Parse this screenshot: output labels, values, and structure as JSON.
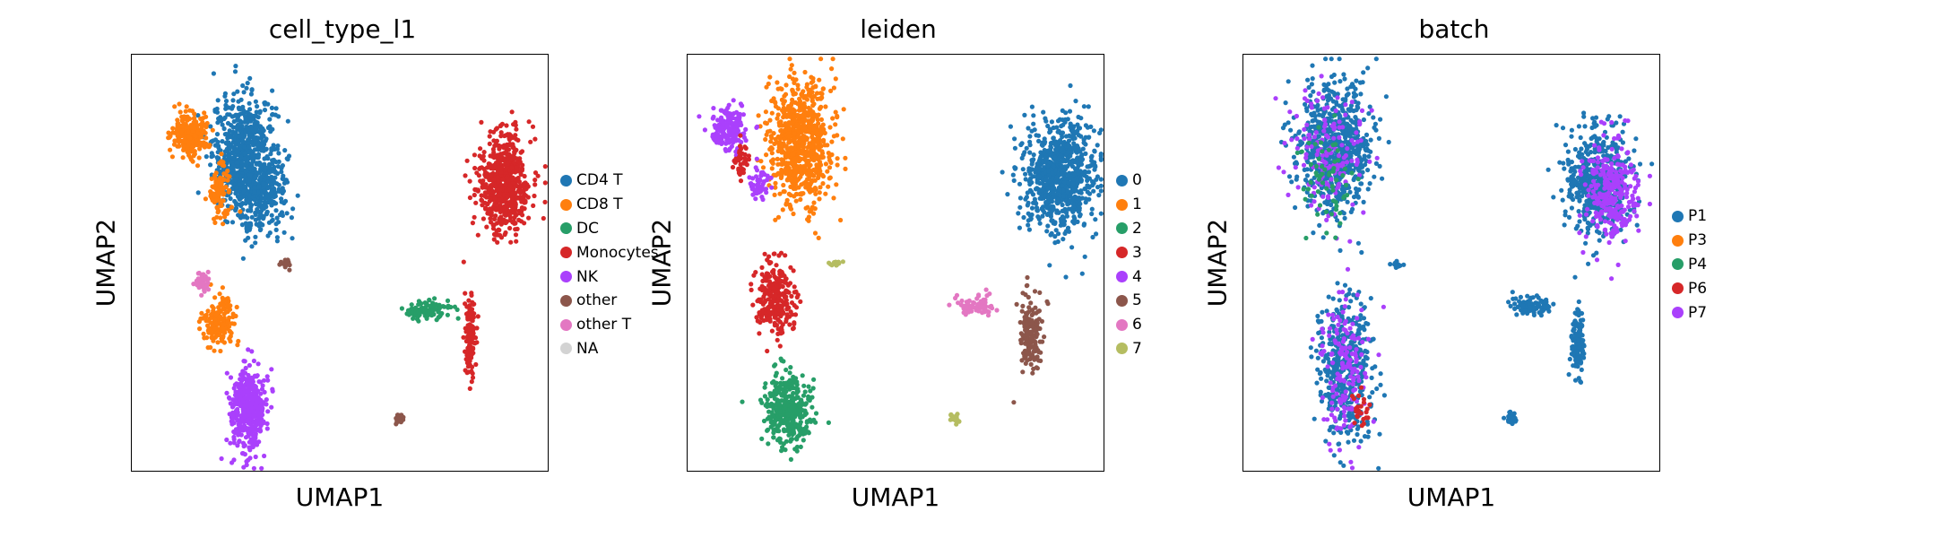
{
  "chart_data": [
    {
      "type": "scatter",
      "title": "cell_type_l1",
      "xlabel": "UMAP1",
      "ylabel": "UMAP2",
      "ticks": "none",
      "legend_placement": "right",
      "categories": [
        "CD4 T",
        "CD8 T",
        "DC",
        "Monocytes",
        "NK",
        "other",
        "other T",
        "NA"
      ],
      "colors": [
        "#1f77b4",
        "#ff7f0e",
        "#279e68",
        "#d62728",
        "#aa40fc",
        "#8c564b",
        "#e377c2",
        "#d3d3d3"
      ],
      "clusters": [
        {
          "category": "CD4 T",
          "center": [
            0.27,
            0.76
          ],
          "spread": [
            0.07,
            0.13
          ],
          "points": 700
        },
        {
          "category": "CD4 T",
          "center": [
            0.31,
            0.66
          ],
          "spread": [
            0.06,
            0.09
          ],
          "points": 250
        },
        {
          "category": "CD8 T",
          "center": [
            0.14,
            0.81
          ],
          "spread": [
            0.04,
            0.05
          ],
          "points": 220
        },
        {
          "category": "CD8 T",
          "center": [
            0.21,
            0.67
          ],
          "spread": [
            0.025,
            0.06
          ],
          "points": 90
        },
        {
          "category": "CD8 T",
          "center": [
            0.21,
            0.36
          ],
          "spread": [
            0.035,
            0.05
          ],
          "points": 160
        },
        {
          "category": "other T",
          "center": [
            0.17,
            0.46
          ],
          "spread": [
            0.015,
            0.02
          ],
          "points": 40
        },
        {
          "category": "NK",
          "center": [
            0.28,
            0.15
          ],
          "spread": [
            0.04,
            0.09
          ],
          "points": 420
        },
        {
          "category": "Monocytes",
          "center": [
            0.89,
            0.69
          ],
          "spread": [
            0.055,
            0.11
          ],
          "points": 650
        },
        {
          "category": "Monocytes",
          "center": [
            0.81,
            0.33
          ],
          "spread": [
            0.012,
            0.09
          ],
          "points": 140
        },
        {
          "category": "DC",
          "center": [
            0.71,
            0.39
          ],
          "spread": [
            0.05,
            0.02
          ],
          "points": 90
        },
        {
          "category": "other",
          "center": [
            0.64,
            0.13
          ],
          "spread": [
            0.01,
            0.01
          ],
          "points": 25
        },
        {
          "category": "other",
          "center": [
            0.37,
            0.5
          ],
          "spread": [
            0.015,
            0.008
          ],
          "points": 15
        }
      ]
    },
    {
      "type": "scatter",
      "title": "leiden",
      "xlabel": "UMAP1",
      "ylabel": "UMAP2",
      "ticks": "none",
      "legend_placement": "right",
      "categories": [
        "0",
        "1",
        "2",
        "3",
        "4",
        "5",
        "6",
        "7"
      ],
      "colors": [
        "#1f77b4",
        "#ff7f0e",
        "#279e68",
        "#d62728",
        "#aa40fc",
        "#8c564b",
        "#e377c2",
        "#b5bd61"
      ],
      "clusters": [
        {
          "category": "0",
          "center": [
            0.89,
            0.71
          ],
          "spread": [
            0.08,
            0.12
          ],
          "points": 800
        },
        {
          "category": "1",
          "center": [
            0.27,
            0.79
          ],
          "spread": [
            0.07,
            0.14
          ],
          "points": 750
        },
        {
          "category": "4",
          "center": [
            0.1,
            0.82
          ],
          "spread": [
            0.04,
            0.05
          ],
          "points": 180
        },
        {
          "category": "4",
          "center": [
            0.17,
            0.69
          ],
          "spread": [
            0.02,
            0.04
          ],
          "points": 50
        },
        {
          "category": "3",
          "center": [
            0.21,
            0.42
          ],
          "spread": [
            0.04,
            0.08
          ],
          "points": 260
        },
        {
          "category": "3",
          "center": [
            0.13,
            0.74
          ],
          "spread": [
            0.015,
            0.04
          ],
          "points": 40
        },
        {
          "category": "2",
          "center": [
            0.24,
            0.15
          ],
          "spread": [
            0.05,
            0.08
          ],
          "points": 380
        },
        {
          "category": "5",
          "center": [
            0.82,
            0.33
          ],
          "spread": [
            0.025,
            0.08
          ],
          "points": 160
        },
        {
          "category": "6",
          "center": [
            0.69,
            0.4
          ],
          "spread": [
            0.04,
            0.02
          ],
          "points": 80
        },
        {
          "category": "7",
          "center": [
            0.64,
            0.13
          ],
          "spread": [
            0.01,
            0.012
          ],
          "points": 30
        },
        {
          "category": "7",
          "center": [
            0.36,
            0.5
          ],
          "spread": [
            0.02,
            0.008
          ],
          "points": 15
        }
      ]
    },
    {
      "type": "scatter",
      "title": "batch",
      "xlabel": "UMAP1",
      "ylabel": "UMAP2",
      "ticks": "none",
      "legend_placement": "right",
      "categories": [
        "P1",
        "P3",
        "P4",
        "P6",
        "P7"
      ],
      "colors": [
        "#1f77b4",
        "#ff7f0e",
        "#279e68",
        "#d62728",
        "#aa40fc"
      ],
      "clusters": [
        {
          "category": "P1",
          "center": [
            0.22,
            0.78
          ],
          "spread": [
            0.08,
            0.14
          ],
          "points": 700
        },
        {
          "category": "P7",
          "center": [
            0.2,
            0.76
          ],
          "spread": [
            0.08,
            0.14
          ],
          "points": 150
        },
        {
          "category": "P4",
          "center": [
            0.2,
            0.7
          ],
          "spread": [
            0.06,
            0.1
          ],
          "points": 60
        },
        {
          "category": "P1",
          "center": [
            0.85,
            0.69
          ],
          "spread": [
            0.07,
            0.12
          ],
          "points": 550
        },
        {
          "category": "P7",
          "center": [
            0.88,
            0.67
          ],
          "spread": [
            0.06,
            0.11
          ],
          "points": 280
        },
        {
          "category": "P1",
          "center": [
            0.24,
            0.25
          ],
          "spread": [
            0.06,
            0.16
          ],
          "points": 450
        },
        {
          "category": "P7",
          "center": [
            0.24,
            0.25
          ],
          "spread": [
            0.05,
            0.14
          ],
          "points": 160
        },
        {
          "category": "P6",
          "center": [
            0.28,
            0.15
          ],
          "spread": [
            0.02,
            0.04
          ],
          "points": 25
        },
        {
          "category": "P1",
          "center": [
            0.8,
            0.32
          ],
          "spread": [
            0.015,
            0.08
          ],
          "points": 130
        },
        {
          "category": "P1",
          "center": [
            0.69,
            0.4
          ],
          "spread": [
            0.05,
            0.02
          ],
          "points": 90
        },
        {
          "category": "P1",
          "center": [
            0.64,
            0.13
          ],
          "spread": [
            0.01,
            0.012
          ],
          "points": 30
        },
        {
          "category": "P1",
          "center": [
            0.37,
            0.5
          ],
          "spread": [
            0.015,
            0.008
          ],
          "points": 15
        }
      ]
    }
  ]
}
